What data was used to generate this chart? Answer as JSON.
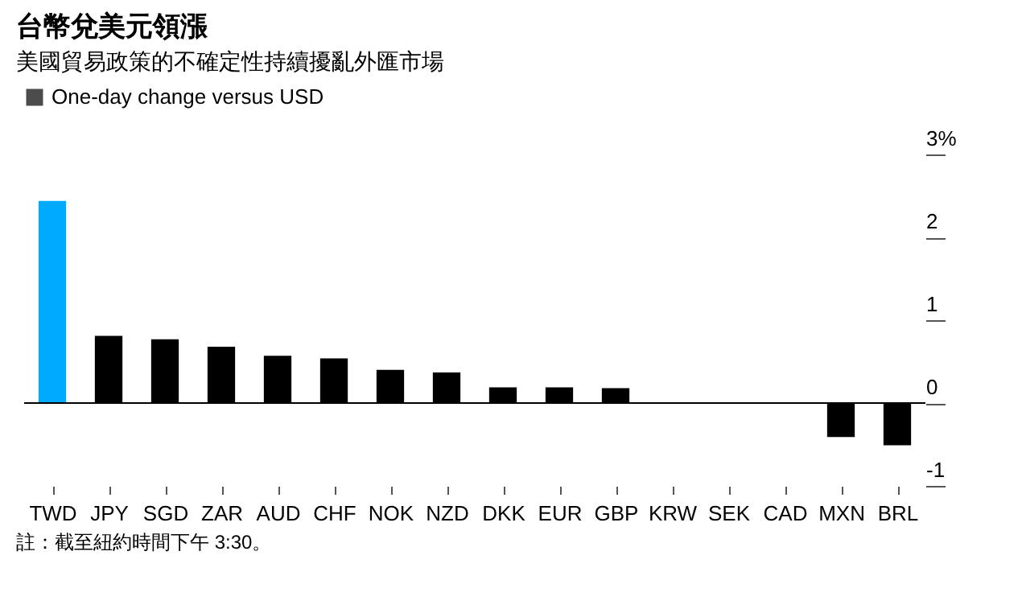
{
  "chart_data": {
    "type": "bar",
    "title": "台幣兌美元領漲",
    "subtitle": "美國貿易政策的不確定性持續擾亂外匯市場",
    "categories": [
      "TWD",
      "JPY",
      "SGD",
      "ZAR",
      "AUD",
      "CHF",
      "NOK",
      "NZD",
      "DKK",
      "EUR",
      "GBP",
      "KRW",
      "SEK",
      "CAD",
      "MXN",
      "BRL"
    ],
    "series": [
      {
        "name": "One-day change versus USD",
        "color": "#000000",
        "colors": [
          "#00aaff",
          "#000000",
          "#000000",
          "#000000",
          "#000000",
          "#000000",
          "#000000",
          "#000000",
          "#000000",
          "#000000",
          "#000000",
          "#000000",
          "#000000",
          "#000000",
          "#000000",
          "#000000"
        ],
        "values": [
          2.44,
          0.81,
          0.77,
          0.68,
          0.57,
          0.54,
          0.4,
          0.37,
          0.19,
          0.19,
          0.18,
          -0.01,
          -0.01,
          -0.01,
          -0.41,
          -0.51
        ]
      }
    ],
    "ylim": [
      -1,
      3
    ],
    "yticks": [
      -1,
      0,
      1,
      2,
      {
        "value": 3,
        "label": "3%"
      }
    ],
    "ref_lines": [
      {
        "axis": "y",
        "value": 0,
        "color": "#000000"
      }
    ],
    "grid": false,
    "legend": "top left",
    "annotations": [
      "註：截至紐約時間下午 3:30。"
    ]
  }
}
